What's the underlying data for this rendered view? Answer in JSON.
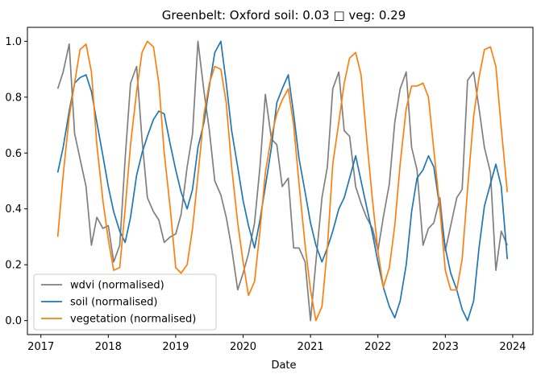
{
  "chart_data": {
    "type": "line",
    "title": "Greenbelt: Oxford soil: 0.03 □ veg: 0.29",
    "xlabel": "Date",
    "ylabel": "",
    "xlim": [
      2016.8,
      2024.3
    ],
    "ylim": [
      -0.05,
      1.05
    ],
    "x_ticks": [
      2017,
      2018,
      2019,
      2020,
      2021,
      2022,
      2023,
      2024
    ],
    "y_ticks": [
      0.0,
      0.2,
      0.4,
      0.6,
      0.8,
      1.0
    ],
    "grid": false,
    "legend_position": "lower-left",
    "series": [
      {
        "name": "wdvi (normalised)",
        "color": "#7f7f7f",
        "points": [
          [
            2017.25,
            0.83
          ],
          [
            2017.33,
            0.89
          ],
          [
            2017.42,
            0.99
          ],
          [
            2017.5,
            0.67
          ],
          [
            2017.58,
            0.58
          ],
          [
            2017.67,
            0.48
          ],
          [
            2017.75,
            0.27
          ],
          [
            2017.83,
            0.37
          ],
          [
            2017.92,
            0.33
          ],
          [
            2018.0,
            0.34
          ],
          [
            2018.08,
            0.21
          ],
          [
            2018.17,
            0.27
          ],
          [
            2018.25,
            0.58
          ],
          [
            2018.33,
            0.85
          ],
          [
            2018.42,
            0.91
          ],
          [
            2018.5,
            0.65
          ],
          [
            2018.58,
            0.44
          ],
          [
            2018.67,
            0.39
          ],
          [
            2018.75,
            0.36
          ],
          [
            2018.83,
            0.28
          ],
          [
            2018.92,
            0.3
          ],
          [
            2019.0,
            0.31
          ],
          [
            2019.08,
            0.38
          ],
          [
            2019.17,
            0.55
          ],
          [
            2019.25,
            0.67
          ],
          [
            2019.33,
            1.0
          ],
          [
            2019.42,
            0.82
          ],
          [
            2019.5,
            0.68
          ],
          [
            2019.58,
            0.5
          ],
          [
            2019.67,
            0.45
          ],
          [
            2019.75,
            0.37
          ],
          [
            2019.83,
            0.26
          ],
          [
            2019.92,
            0.11
          ],
          [
            2020.0,
            0.17
          ],
          [
            2020.08,
            0.24
          ],
          [
            2020.17,
            0.35
          ],
          [
            2020.25,
            0.55
          ],
          [
            2020.33,
            0.81
          ],
          [
            2020.42,
            0.65
          ],
          [
            2020.5,
            0.63
          ],
          [
            2020.58,
            0.48
          ],
          [
            2020.67,
            0.51
          ],
          [
            2020.75,
            0.26
          ],
          [
            2020.83,
            0.26
          ],
          [
            2020.92,
            0.21
          ],
          [
            2021.0,
            0.0
          ],
          [
            2021.08,
            0.21
          ],
          [
            2021.17,
            0.44
          ],
          [
            2021.25,
            0.55
          ],
          [
            2021.33,
            0.83
          ],
          [
            2021.42,
            0.89
          ],
          [
            2021.5,
            0.68
          ],
          [
            2021.58,
            0.66
          ],
          [
            2021.67,
            0.48
          ],
          [
            2021.75,
            0.42
          ],
          [
            2021.83,
            0.37
          ],
          [
            2021.92,
            0.33
          ],
          [
            2022.0,
            0.25
          ],
          [
            2022.08,
            0.37
          ],
          [
            2022.17,
            0.49
          ],
          [
            2022.25,
            0.71
          ],
          [
            2022.33,
            0.83
          ],
          [
            2022.42,
            0.89
          ],
          [
            2022.5,
            0.62
          ],
          [
            2022.58,
            0.54
          ],
          [
            2022.67,
            0.27
          ],
          [
            2022.75,
            0.33
          ],
          [
            2022.83,
            0.35
          ],
          [
            2022.92,
            0.44
          ],
          [
            2023.0,
            0.25
          ],
          [
            2023.08,
            0.34
          ],
          [
            2023.17,
            0.44
          ],
          [
            2023.25,
            0.47
          ],
          [
            2023.33,
            0.86
          ],
          [
            2023.42,
            0.89
          ],
          [
            2023.5,
            0.76
          ],
          [
            2023.58,
            0.62
          ],
          [
            2023.67,
            0.53
          ],
          [
            2023.75,
            0.18
          ],
          [
            2023.83,
            0.32
          ],
          [
            2023.92,
            0.27
          ]
        ]
      },
      {
        "name": "soil (normalised)",
        "color": "#1f77b4",
        "points": [
          [
            2017.25,
            0.53
          ],
          [
            2017.33,
            0.62
          ],
          [
            2017.42,
            0.75
          ],
          [
            2017.5,
            0.85
          ],
          [
            2017.58,
            0.87
          ],
          [
            2017.67,
            0.88
          ],
          [
            2017.75,
            0.82
          ],
          [
            2017.83,
            0.71
          ],
          [
            2017.92,
            0.59
          ],
          [
            2018.0,
            0.48
          ],
          [
            2018.08,
            0.39
          ],
          [
            2018.17,
            0.32
          ],
          [
            2018.25,
            0.28
          ],
          [
            2018.33,
            0.37
          ],
          [
            2018.42,
            0.52
          ],
          [
            2018.5,
            0.6
          ],
          [
            2018.58,
            0.66
          ],
          [
            2018.67,
            0.72
          ],
          [
            2018.75,
            0.75
          ],
          [
            2018.83,
            0.74
          ],
          [
            2018.92,
            0.63
          ],
          [
            2019.0,
            0.54
          ],
          [
            2019.08,
            0.46
          ],
          [
            2019.17,
            0.4
          ],
          [
            2019.25,
            0.47
          ],
          [
            2019.33,
            0.62
          ],
          [
            2019.42,
            0.71
          ],
          [
            2019.5,
            0.84
          ],
          [
            2019.58,
            0.96
          ],
          [
            2019.67,
            1.0
          ],
          [
            2019.75,
            0.85
          ],
          [
            2019.83,
            0.68
          ],
          [
            2019.92,
            0.55
          ],
          [
            2020.0,
            0.43
          ],
          [
            2020.08,
            0.34
          ],
          [
            2020.17,
            0.26
          ],
          [
            2020.25,
            0.36
          ],
          [
            2020.33,
            0.48
          ],
          [
            2020.42,
            0.62
          ],
          [
            2020.5,
            0.78
          ],
          [
            2020.58,
            0.83
          ],
          [
            2020.67,
            0.88
          ],
          [
            2020.75,
            0.74
          ],
          [
            2020.83,
            0.58
          ],
          [
            2020.92,
            0.46
          ],
          [
            2021.0,
            0.35
          ],
          [
            2021.08,
            0.27
          ],
          [
            2021.17,
            0.21
          ],
          [
            2021.25,
            0.26
          ],
          [
            2021.33,
            0.32
          ],
          [
            2021.42,
            0.4
          ],
          [
            2021.5,
            0.44
          ],
          [
            2021.58,
            0.51
          ],
          [
            2021.67,
            0.59
          ],
          [
            2021.75,
            0.5
          ],
          [
            2021.83,
            0.41
          ],
          [
            2021.92,
            0.31
          ],
          [
            2022.0,
            0.21
          ],
          [
            2022.08,
            0.12
          ],
          [
            2022.17,
            0.05
          ],
          [
            2022.25,
            0.01
          ],
          [
            2022.33,
            0.07
          ],
          [
            2022.42,
            0.2
          ],
          [
            2022.5,
            0.39
          ],
          [
            2022.58,
            0.51
          ],
          [
            2022.67,
            0.54
          ],
          [
            2022.75,
            0.59
          ],
          [
            2022.83,
            0.55
          ],
          [
            2022.92,
            0.4
          ],
          [
            2023.0,
            0.26
          ],
          [
            2023.08,
            0.17
          ],
          [
            2023.17,
            0.11
          ],
          [
            2023.25,
            0.04
          ],
          [
            2023.33,
            0.0
          ],
          [
            2023.42,
            0.07
          ],
          [
            2023.5,
            0.26
          ],
          [
            2023.58,
            0.41
          ],
          [
            2023.67,
            0.49
          ],
          [
            2023.75,
            0.56
          ],
          [
            2023.83,
            0.48
          ],
          [
            2023.92,
            0.22
          ]
        ]
      },
      {
        "name": "vegetation (normalised)",
        "color": "#ff7f0e",
        "points": [
          [
            2017.25,
            0.3
          ],
          [
            2017.33,
            0.52
          ],
          [
            2017.42,
            0.73
          ],
          [
            2017.5,
            0.85
          ],
          [
            2017.58,
            0.97
          ],
          [
            2017.67,
            0.99
          ],
          [
            2017.75,
            0.89
          ],
          [
            2017.83,
            0.63
          ],
          [
            2017.92,
            0.43
          ],
          [
            2018.0,
            0.29
          ],
          [
            2018.08,
            0.18
          ],
          [
            2018.17,
            0.19
          ],
          [
            2018.25,
            0.4
          ],
          [
            2018.33,
            0.63
          ],
          [
            2018.42,
            0.82
          ],
          [
            2018.5,
            0.96
          ],
          [
            2018.58,
            1.0
          ],
          [
            2018.67,
            0.98
          ],
          [
            2018.75,
            0.85
          ],
          [
            2018.83,
            0.6
          ],
          [
            2018.92,
            0.4
          ],
          [
            2019.0,
            0.19
          ],
          [
            2019.08,
            0.17
          ],
          [
            2019.17,
            0.2
          ],
          [
            2019.25,
            0.33
          ],
          [
            2019.33,
            0.52
          ],
          [
            2019.42,
            0.74
          ],
          [
            2019.5,
            0.85
          ],
          [
            2019.58,
            0.91
          ],
          [
            2019.67,
            0.9
          ],
          [
            2019.75,
            0.78
          ],
          [
            2019.83,
            0.55
          ],
          [
            2019.92,
            0.35
          ],
          [
            2020.0,
            0.21
          ],
          [
            2020.08,
            0.09
          ],
          [
            2020.17,
            0.14
          ],
          [
            2020.25,
            0.32
          ],
          [
            2020.33,
            0.53
          ],
          [
            2020.42,
            0.66
          ],
          [
            2020.5,
            0.74
          ],
          [
            2020.58,
            0.79
          ],
          [
            2020.67,
            0.83
          ],
          [
            2020.75,
            0.7
          ],
          [
            2020.83,
            0.49
          ],
          [
            2020.92,
            0.27
          ],
          [
            2021.0,
            0.11
          ],
          [
            2021.08,
            0.0
          ],
          [
            2021.17,
            0.05
          ],
          [
            2021.25,
            0.26
          ],
          [
            2021.33,
            0.56
          ],
          [
            2021.42,
            0.71
          ],
          [
            2021.5,
            0.85
          ],
          [
            2021.58,
            0.94
          ],
          [
            2021.67,
            0.96
          ],
          [
            2021.75,
            0.88
          ],
          [
            2021.83,
            0.66
          ],
          [
            2021.92,
            0.43
          ],
          [
            2022.0,
            0.25
          ],
          [
            2022.08,
            0.12
          ],
          [
            2022.17,
            0.19
          ],
          [
            2022.25,
            0.34
          ],
          [
            2022.33,
            0.56
          ],
          [
            2022.42,
            0.76
          ],
          [
            2022.5,
            0.84
          ],
          [
            2022.58,
            0.84
          ],
          [
            2022.67,
            0.85
          ],
          [
            2022.75,
            0.8
          ],
          [
            2022.83,
            0.61
          ],
          [
            2022.92,
            0.4
          ],
          [
            2023.0,
            0.18
          ],
          [
            2023.08,
            0.11
          ],
          [
            2023.17,
            0.11
          ],
          [
            2023.25,
            0.22
          ],
          [
            2023.33,
            0.47
          ],
          [
            2023.42,
            0.73
          ],
          [
            2023.5,
            0.87
          ],
          [
            2023.58,
            0.97
          ],
          [
            2023.67,
            0.98
          ],
          [
            2023.75,
            0.91
          ],
          [
            2023.83,
            0.69
          ],
          [
            2023.92,
            0.46
          ]
        ]
      }
    ]
  }
}
